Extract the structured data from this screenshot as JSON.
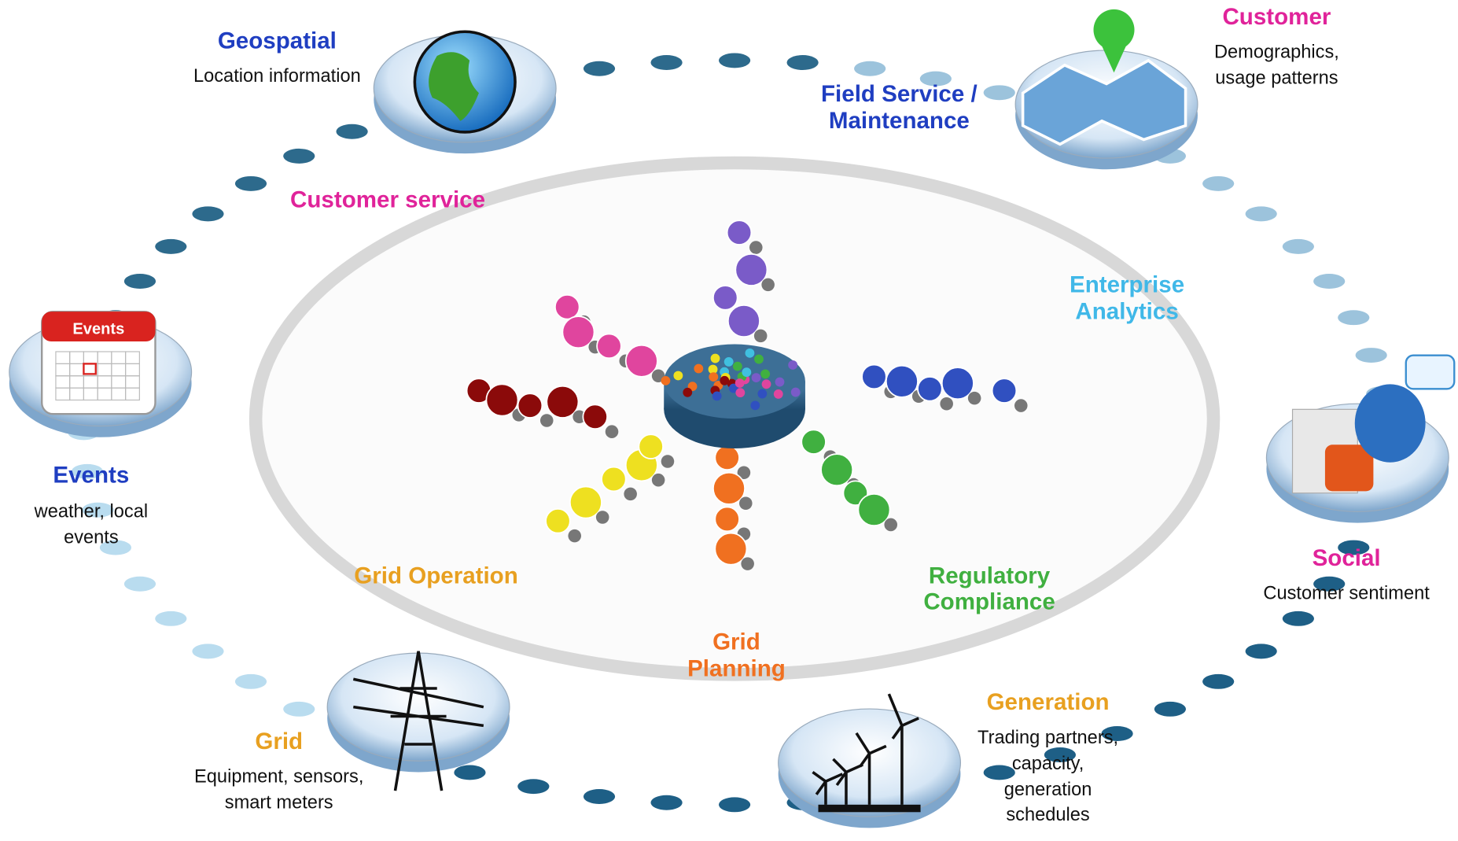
{
  "sources": [
    {
      "title": "Geospatial",
      "description": [
        "Location information"
      ]
    },
    {
      "title": "Customer",
      "description": [
        "Demographics,",
        "usage patterns"
      ]
    },
    {
      "title": "Events",
      "description": [
        "weather, local",
        "events"
      ]
    },
    {
      "title": "Social",
      "description": [
        "Customer sentiment"
      ]
    },
    {
      "title": "Grid",
      "description": [
        "Equipment, sensors,",
        "smart meters"
      ]
    },
    {
      "title": "Generation",
      "description": [
        "Trading partners,",
        "capacity,",
        "generation",
        "schedules"
      ]
    }
  ],
  "functions": [
    {
      "label": [
        "Field Service /",
        "Maintenance"
      ]
    },
    {
      "label": [
        "Customer service"
      ]
    },
    {
      "label": [
        "Enterprise",
        "Analytics"
      ]
    },
    {
      "label": [
        "Grid Operation"
      ]
    },
    {
      "label": [
        "Grid",
        "Planning"
      ]
    },
    {
      "label": [
        "Regulatory",
        "Compliance"
      ]
    }
  ],
  "icon_text": {
    "events": "Events"
  }
}
